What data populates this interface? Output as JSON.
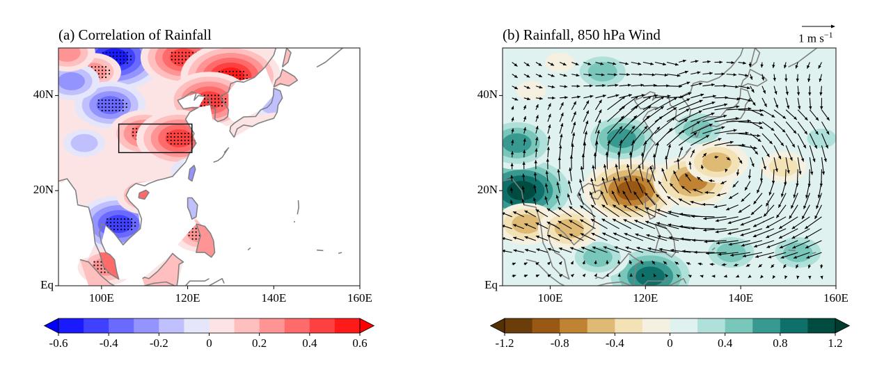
{
  "chart_data": [
    {
      "id": "a",
      "type": "heatmap",
      "title": "(a) Correlation of Rainfall",
      "xlabel": "",
      "ylabel": "",
      "xlim": [
        90,
        160
      ],
      "ylim": [
        0,
        50
      ],
      "xticks": [
        100,
        120,
        140,
        160
      ],
      "xtick_labels": [
        "100E",
        "120E",
        "140E",
        "160E"
      ],
      "yticks": [
        0,
        20,
        40
      ],
      "ytick_labels": [
        "Eq",
        "20N",
        "40N"
      ],
      "colorbar": {
        "levels": [
          -0.6,
          -0.5,
          -0.4,
          -0.3,
          -0.2,
          -0.1,
          0,
          0.1,
          0.2,
          0.3,
          0.4,
          0.5,
          0.6
        ],
        "tick_values": [
          -0.6,
          -0.4,
          -0.2,
          0,
          0.2,
          0.4,
          0.6
        ],
        "tick_labels": [
          "-0.6",
          "-0.4",
          "-0.2",
          "0",
          "0.2",
          "0.4",
          "0.6"
        ],
        "colors": [
          "#0000ff",
          "#1a1aff",
          "#4040ff",
          "#6a6aff",
          "#9494ff",
          "#c0c0ff",
          "#e6e6fa",
          "#fde4e4",
          "#ffbfbf",
          "#ff9494",
          "#ff6a6a",
          "#ff4040",
          "#ff1a1a",
          "#ff0000"
        ],
        "extend": "both",
        "placement": "bottom"
      },
      "box_region": {
        "lon": [
          104,
          121
        ],
        "lat": [
          28,
          34
        ],
        "label": "key region (box)"
      },
      "anomaly_blobs": [
        {
          "lon": 103,
          "lat": 48,
          "value": -0.55,
          "significant": true
        },
        {
          "lon": 119,
          "lat": 48,
          "value": 0.45,
          "significant": true
        },
        {
          "lon": 130,
          "lat": 44,
          "value": 0.55,
          "significant": true
        },
        {
          "lon": 98,
          "lat": 45,
          "value": 0.35,
          "significant": true
        },
        {
          "lon": 102,
          "lat": 38,
          "value": -0.4,
          "significant": true
        },
        {
          "lon": 125,
          "lat": 39,
          "value": 0.5,
          "significant": true
        },
        {
          "lon": 110,
          "lat": 32,
          "value": 0.4,
          "significant": true
        },
        {
          "lon": 118,
          "lat": 31,
          "value": 0.45,
          "significant": true
        },
        {
          "lon": 104,
          "lat": 13,
          "value": -0.5,
          "significant": true
        },
        {
          "lon": 110,
          "lat": 19,
          "value": 0.35,
          "significant": true
        },
        {
          "lon": 101,
          "lat": 4,
          "value": 0.3,
          "significant": true
        },
        {
          "lon": 123,
          "lat": 11,
          "value": 0.3,
          "significant": true
        },
        {
          "lon": 93,
          "lat": 43,
          "value": -0.25,
          "significant": false
        },
        {
          "lon": 140,
          "lat": 38,
          "value": -0.2,
          "significant": false
        },
        {
          "lon": 96,
          "lat": 30,
          "value": -0.2,
          "significant": false
        },
        {
          "lon": 121,
          "lat": 24,
          "value": -0.2,
          "significant": false
        },
        {
          "lon": 92,
          "lat": 49,
          "value": 0.25,
          "significant": false
        }
      ],
      "ocean_blank": true,
      "stippling": "significant areas dotted"
    },
    {
      "id": "b",
      "type": "heatmap",
      "title": "(b) Rainfall, 850 hPa Wind",
      "xlabel": "",
      "ylabel": "",
      "xlim": [
        90,
        160
      ],
      "ylim": [
        0,
        50
      ],
      "xticks": [
        100,
        120,
        140,
        160
      ],
      "xtick_labels": [
        "100E",
        "120E",
        "140E",
        "160E"
      ],
      "yticks": [
        0,
        20,
        40
      ],
      "ytick_labels": [
        "Eq",
        "20N",
        "40N"
      ],
      "reference_vector": {
        "magnitude": 1,
        "label": "1 m s",
        "unit_exponent": "−1"
      },
      "colorbar": {
        "levels": [
          -1.2,
          -1.0,
          -0.8,
          -0.6,
          -0.4,
          -0.2,
          0,
          0.2,
          0.4,
          0.6,
          0.8,
          1.0,
          1.2
        ],
        "tick_values": [
          -1.2,
          -0.8,
          -0.4,
          0,
          0.4,
          0.8,
          1.2
        ],
        "tick_labels": [
          "-1.2",
          "-0.8",
          "-0.4",
          "0",
          "0.4",
          "0.8",
          "1.2"
        ],
        "colors": [
          "#543005",
          "#6b3d0a",
          "#995813",
          "#c08233",
          "#dfba75",
          "#f3e2b5",
          "#f5f0e0",
          "#e0f2f0",
          "#afe0d9",
          "#78c7ba",
          "#379990",
          "#0f7069",
          "#004c40",
          "#003c30"
        ],
        "extend": "both",
        "placement": "bottom"
      },
      "anomaly_blobs": [
        {
          "lon": 94,
          "lat": 20,
          "value": 1.1
        },
        {
          "lon": 93,
          "lat": 30,
          "value": 0.8
        },
        {
          "lon": 115,
          "lat": 31,
          "value": 0.85
        },
        {
          "lon": 111,
          "lat": 45,
          "value": 0.5
        },
        {
          "lon": 131,
          "lat": 33,
          "value": 0.7
        },
        {
          "lon": 121,
          "lat": 2,
          "value": 0.9
        },
        {
          "lon": 110,
          "lat": 6,
          "value": 0.6
        },
        {
          "lon": 138,
          "lat": 7,
          "value": 0.7
        },
        {
          "lon": 152,
          "lat": 7,
          "value": 0.6
        },
        {
          "lon": 157,
          "lat": 31,
          "value": 0.4
        },
        {
          "lon": 117,
          "lat": 20,
          "value": -0.9
        },
        {
          "lon": 130,
          "lat": 22,
          "value": -0.85
        },
        {
          "lon": 135,
          "lat": 26,
          "value": -0.7
        },
        {
          "lon": 95,
          "lat": 13,
          "value": -0.5
        },
        {
          "lon": 104,
          "lat": 12,
          "value": -0.7
        },
        {
          "lon": 149,
          "lat": 25,
          "value": -0.4
        },
        {
          "lon": 96,
          "lat": 41,
          "value": -0.15
        },
        {
          "lon": 102,
          "lat": 47,
          "value": -0.15
        }
      ],
      "wind_field": {
        "description": "850 hPa wind anomaly vectors",
        "features": [
          {
            "name": "anticyclone center",
            "lon": 135,
            "lat": 25
          },
          {
            "name": "easterly flow",
            "lat_range": [
              5,
              17
            ]
          },
          {
            "name": "southwesterly flow",
            "lon_range": [
              115,
              140
            ],
            "lat_range": [
              28,
              36
            ]
          }
        ]
      }
    }
  ]
}
